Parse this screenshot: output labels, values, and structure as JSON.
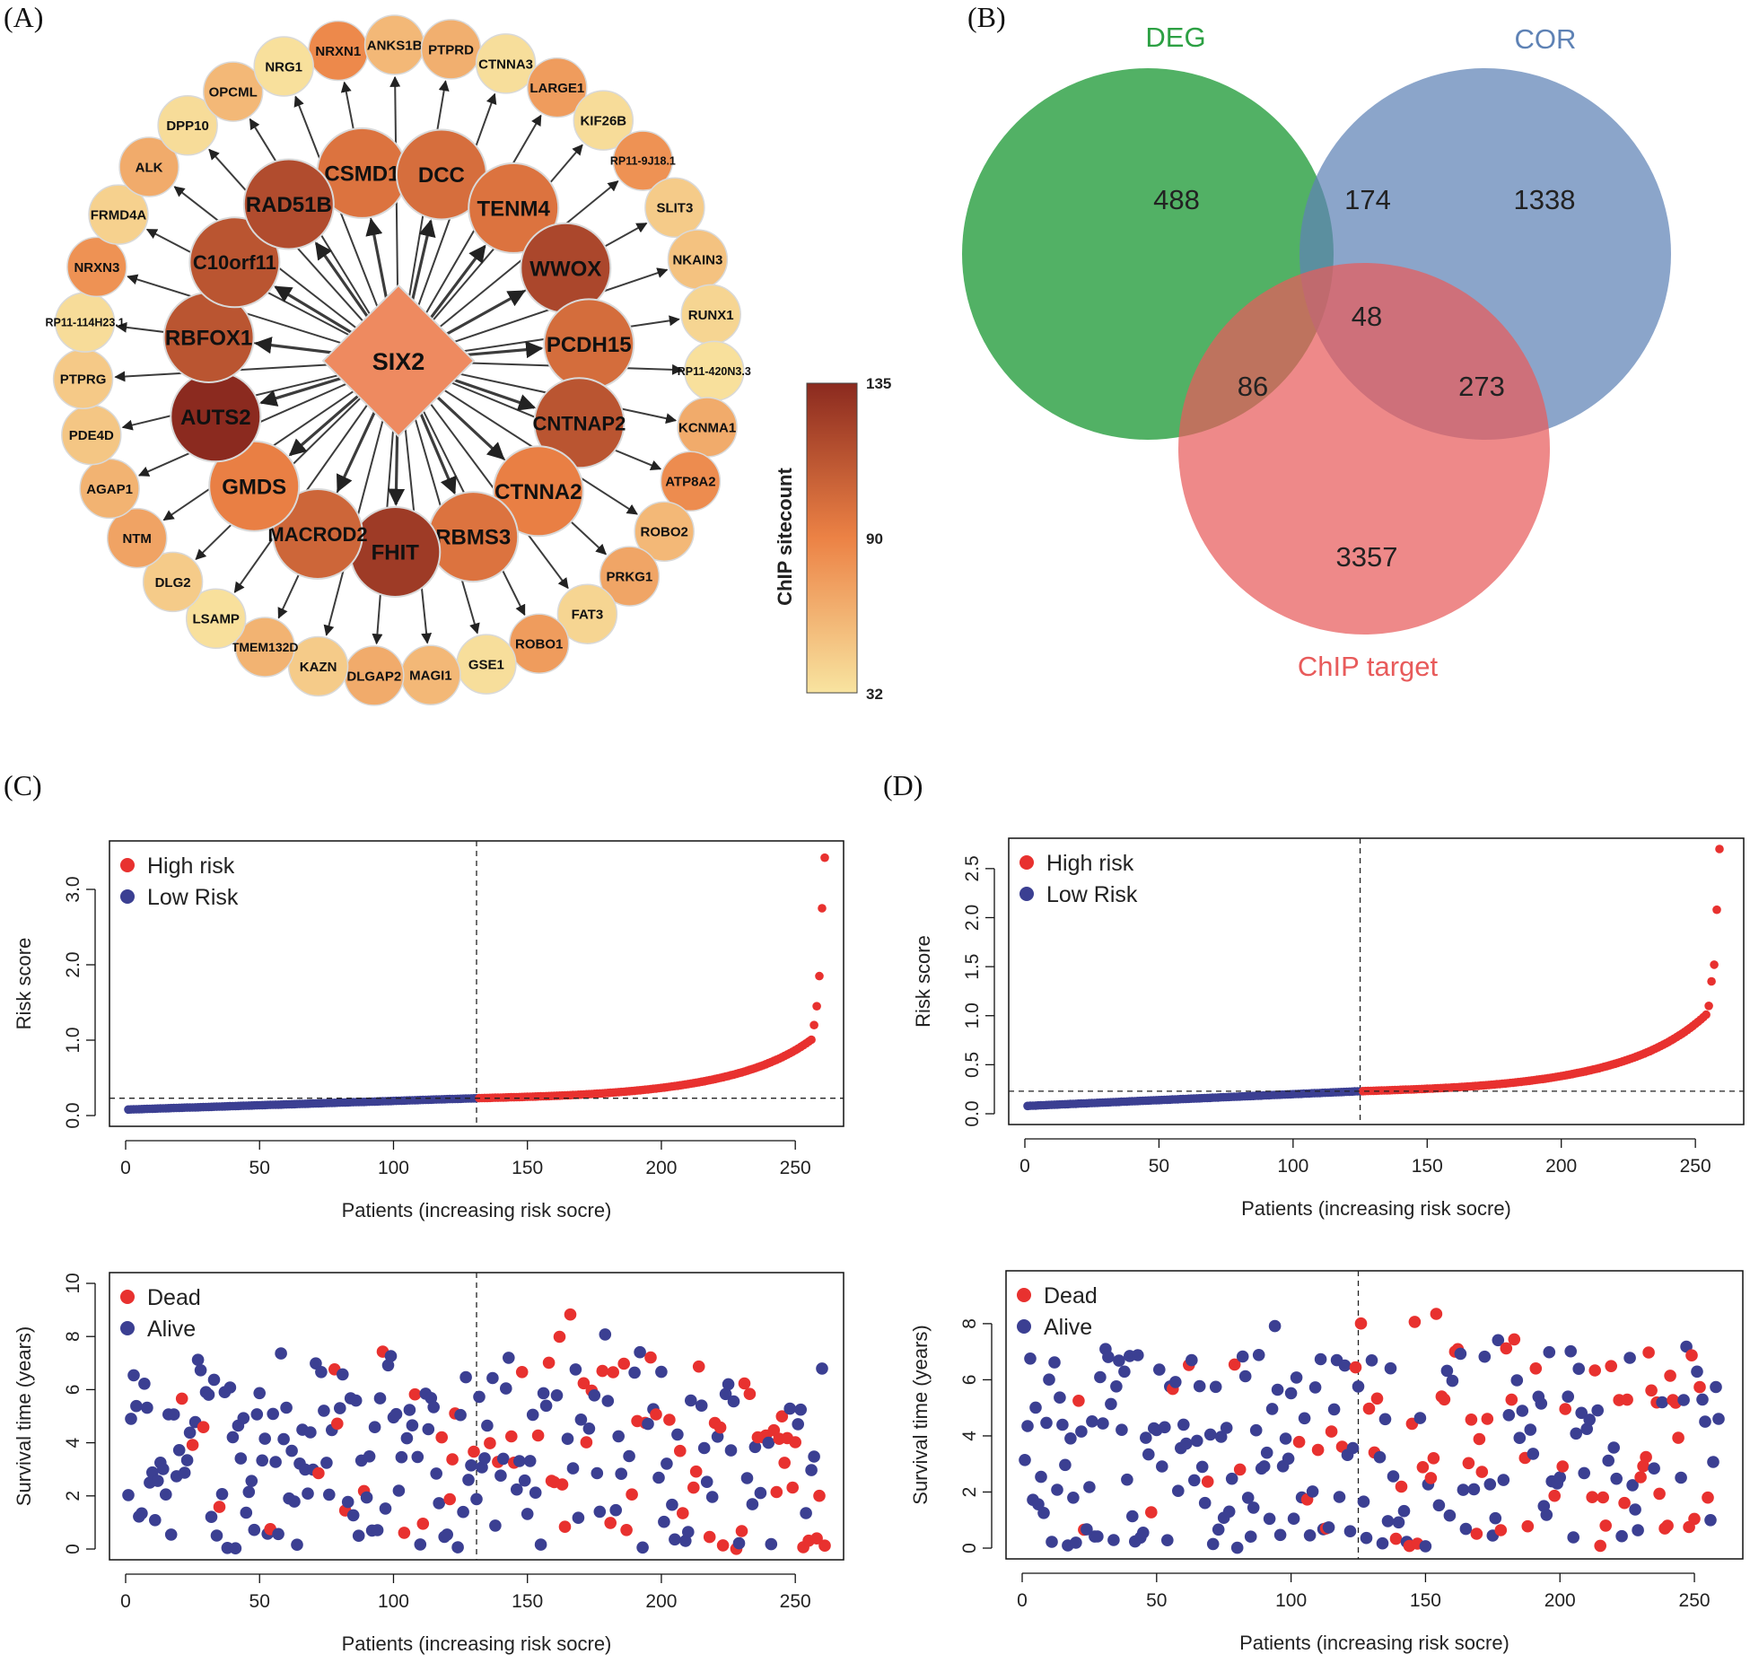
{
  "colors": {
    "high": "#e8312f",
    "low": "#3b3f92",
    "deg": "#2ca043",
    "cor": "#5e82b5",
    "chip": "#e85b5b",
    "hub": "#ee8a60",
    "scale_low": "#f8e4a0",
    "scale_mid": "#ec8245",
    "scale_high": "#8b2a1f"
  },
  "panels": {
    "a": "(A)",
    "b": "(B)",
    "c": "(C)",
    "d": "(D)"
  },
  "network": {
    "hub": "SIX2",
    "inner": [
      {
        "label": "CSMD1",
        "v": 92
      },
      {
        "label": "DCC",
        "v": 95
      },
      {
        "label": "TENM4",
        "v": 92
      },
      {
        "label": "WWOX",
        "v": 118
      },
      {
        "label": "PCDH15",
        "v": 96
      },
      {
        "label": "CNTNAP2",
        "v": 110
      },
      {
        "label": "CTNNA2",
        "v": 85
      },
      {
        "label": "RBMS3",
        "v": 92
      },
      {
        "label": "FHIT",
        "v": 125
      },
      {
        "label": "MACROD2",
        "v": 100
      },
      {
        "label": "GMDS",
        "v": 85
      },
      {
        "label": "AUTS2",
        "v": 135
      },
      {
        "label": "RBFOX1",
        "v": 110
      },
      {
        "label": "C10orf11",
        "v": 110
      },
      {
        "label": "RAD51B",
        "v": 115
      }
    ],
    "outer": [
      {
        "label": "NRXN1",
        "v": 80
      },
      {
        "label": "ANKS1B",
        "v": 55
      },
      {
        "label": "PTPRD",
        "v": 60
      },
      {
        "label": "CTNNA3",
        "v": 35
      },
      {
        "label": "LARGE1",
        "v": 70
      },
      {
        "label": "KIF26B",
        "v": 36
      },
      {
        "label": "RP11-9J18.1",
        "v": 75
      },
      {
        "label": "SLIT3",
        "v": 45
      },
      {
        "label": "NKAIN3",
        "v": 50
      },
      {
        "label": "RUNX1",
        "v": 40
      },
      {
        "label": "RP11-420N3.3",
        "v": 34
      },
      {
        "label": "KCNMA1",
        "v": 62
      },
      {
        "label": "ATP8A2",
        "v": 78
      },
      {
        "label": "ROBO2",
        "v": 55
      },
      {
        "label": "PRKG1",
        "v": 65
      },
      {
        "label": "FAT3",
        "v": 40
      },
      {
        "label": "ROBO1",
        "v": 70
      },
      {
        "label": "GSE1",
        "v": 35
      },
      {
        "label": "MAGI1",
        "v": 55
      },
      {
        "label": "DLGAP2",
        "v": 62
      },
      {
        "label": "KAZN",
        "v": 45
      },
      {
        "label": "TMEM132D",
        "v": 58
      },
      {
        "label": "LSAMP",
        "v": 34
      },
      {
        "label": "DLG2",
        "v": 45
      },
      {
        "label": "NTM",
        "v": 66
      },
      {
        "label": "AGAP1",
        "v": 58
      },
      {
        "label": "PDE4D",
        "v": 48
      },
      {
        "label": "PTPRG",
        "v": 46
      },
      {
        "label": "RP11-114H23.1",
        "v": 36
      },
      {
        "label": "NRXN3",
        "v": 75
      },
      {
        "label": "FRMD4A",
        "v": 42
      },
      {
        "label": "ALK",
        "v": 62
      },
      {
        "label": "DPP10",
        "v": 36
      },
      {
        "label": "OPCML",
        "v": 55
      },
      {
        "label": "NRG1",
        "v": 34
      }
    ]
  },
  "colorbar": {
    "title": "ChIP sitecount",
    "max": "135",
    "mid": "90",
    "min": "32"
  },
  "venn": {
    "sets": [
      "DEG",
      "COR",
      "ChIP target"
    ],
    "regions": {
      "deg_only": "488",
      "deg_cor": "174",
      "cor_only": "1338",
      "all": "48",
      "deg_chip": "86",
      "cor_chip": "273",
      "chip_only": "3357"
    }
  },
  "chart_data": [
    {
      "id": "C-risk",
      "type": "scatter",
      "n": 261,
      "cutoff_index": 131,
      "threshold": 0.23,
      "curve": "sorted risk scores; low group 0.08-0.23; high group 0.23-3.4; top values 1.85, 2.75, 3.42",
      "top_values": [
        1.2,
        1.45,
        1.85,
        2.75,
        3.42
      ],
      "xlim": [
        0,
        262
      ],
      "ylim": [
        0,
        3.5
      ],
      "xticks": [
        0,
        50,
        100,
        150,
        200,
        250
      ],
      "yticks": [
        "0.0",
        "1.0",
        "2.0",
        "3.0"
      ],
      "xlabel": "Patients (increasing risk socre)",
      "ylabel": "Risk score",
      "legend": [
        "High risk",
        "Low Risk"
      ]
    },
    {
      "id": "D-risk",
      "type": "scatter",
      "n": 259,
      "cutoff_index": 125,
      "threshold": 0.23,
      "curve": "sorted risk scores; low group 0.08-0.23; high group 0.23-2.7; top values 1.52, 2.08, 2.7",
      "top_values": [
        1.1,
        1.35,
        1.52,
        2.08,
        2.7
      ],
      "xlim": [
        0,
        262
      ],
      "ylim": [
        0,
        2.7
      ],
      "xticks": [
        0,
        50,
        100,
        150,
        200,
        250
      ],
      "yticks": [
        "0.0",
        "0.5",
        "1.0",
        "1.5",
        "2.0",
        "2.5"
      ],
      "xlabel": "Patients (increasing risk socre)",
      "ylabel": "Risk score",
      "legend": [
        "High risk",
        "Low Risk"
      ]
    },
    {
      "id": "C-surv",
      "type": "scatter",
      "n": 261,
      "cutoff_index": 131,
      "description": "survival time (years, 0-10) per patient, dead (red) more frequent among high-risk patients",
      "xlim": [
        0,
        262
      ],
      "ylim": [
        0,
        10
      ],
      "xticks": [
        0,
        50,
        100,
        150,
        200,
        250
      ],
      "yticks": [
        "0",
        "2",
        "4",
        "6",
        "8",
        "10"
      ],
      "xlabel": "Patients (increasing risk socre)",
      "ylabel": "Survival time (years)",
      "legend": [
        "Dead",
        "Alive"
      ]
    },
    {
      "id": "D-surv",
      "type": "scatter",
      "n": 259,
      "cutoff_index": 125,
      "description": "survival time (years, 0-9.5) per patient, dead (red) more frequent among high-risk patients",
      "xlim": [
        0,
        262
      ],
      "ylim": [
        0,
        9.5
      ],
      "xticks": [
        0,
        50,
        100,
        150,
        200,
        250
      ],
      "yticks": [
        "0",
        "2",
        "4",
        "6",
        "8"
      ],
      "xlabel": "Patients (increasing risk socre)",
      "ylabel": "Survival time (years)",
      "legend": [
        "Dead",
        "Alive"
      ]
    }
  ]
}
